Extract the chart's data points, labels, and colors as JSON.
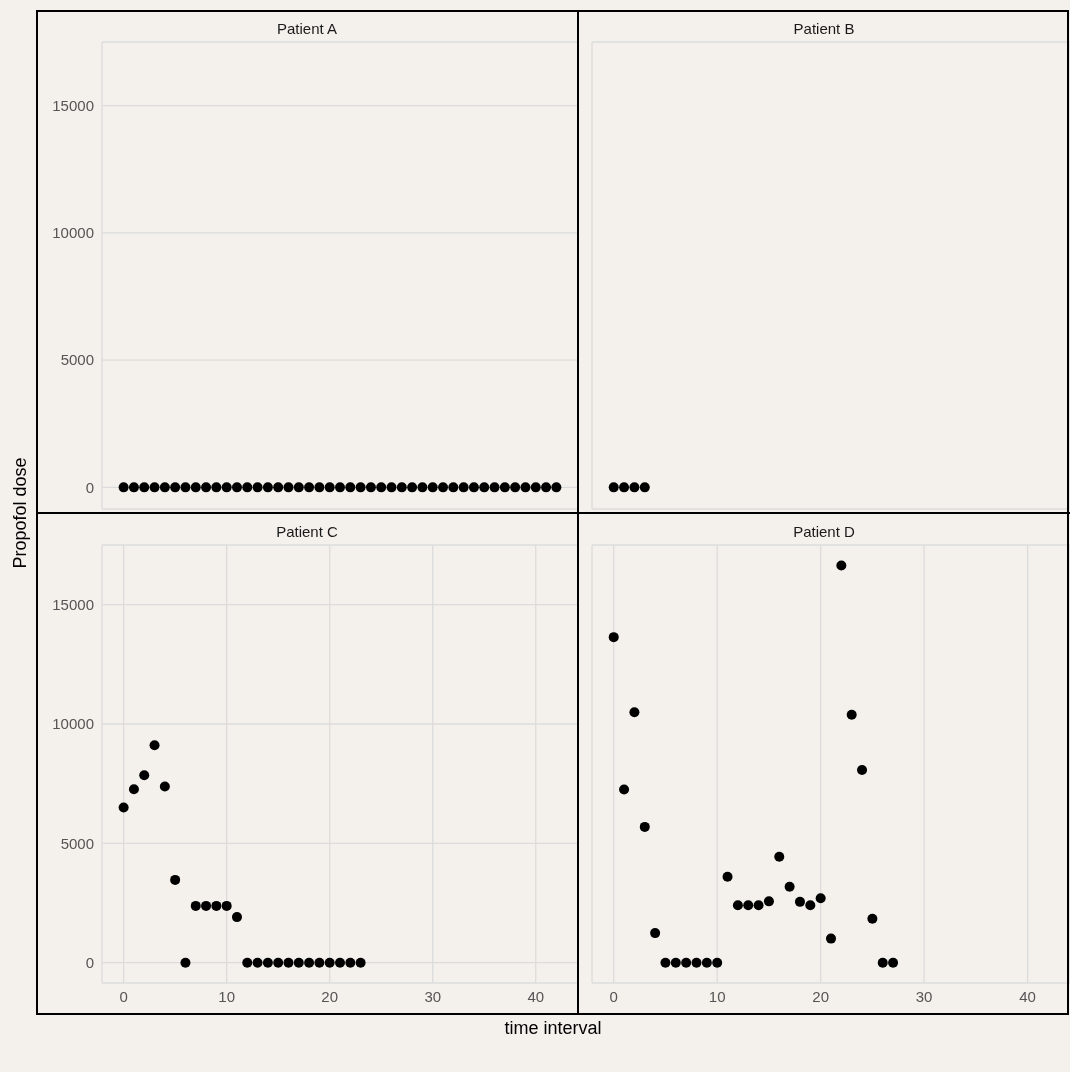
{
  "chart_data": [
    {
      "type": "scatter",
      "title": "Patient A",
      "ylabel": "Propofol dose",
      "xlabel": "time interval",
      "x": [
        0,
        1,
        2,
        3,
        4,
        5,
        6,
        7,
        8,
        9,
        10,
        11,
        12,
        13,
        14,
        15,
        16,
        17,
        18,
        19,
        20,
        21,
        22,
        23,
        24,
        25,
        26,
        27,
        28,
        29,
        30,
        31,
        32,
        33,
        34,
        35,
        36,
        37,
        38,
        39,
        40,
        41,
        42
      ],
      "series": [
        {
          "color": "#000000",
          "values": [
            0,
            0,
            0,
            0,
            0,
            0,
            0,
            0,
            0,
            0,
            0,
            0,
            0,
            0,
            0,
            0,
            0,
            0,
            0,
            0,
            0,
            0,
            0,
            0,
            0,
            0,
            0,
            0,
            0,
            0,
            0,
            0,
            0,
            0,
            0,
            0,
            0,
            0,
            0,
            0,
            0,
            0,
            0
          ]
        }
      ],
      "xlim": [
        -2.1,
        44.1
      ],
      "xticks": [
        0,
        10,
        20,
        30,
        40
      ],
      "ylim": [
        -850,
        17500
      ],
      "yticks": [
        0,
        5000,
        10000,
        15000
      ],
      "grid": true,
      "marker": "circle",
      "tick_labels": "y"
    },
    {
      "type": "scatter",
      "title": "Patient B",
      "x": [
        0,
        1,
        2,
        3
      ],
      "series": [
        {
          "color": "#000000",
          "values": [
            0,
            0,
            0,
            0
          ]
        }
      ],
      "xlim": [
        -2.1,
        44.1
      ],
      "xticks": [
        0,
        10,
        20,
        30,
        40
      ],
      "ylim": [
        -850,
        17500
      ],
      "yticks": [
        0,
        5000,
        10000,
        15000
      ],
      "grid": true,
      "marker": "circle",
      "tick_labels": false
    },
    {
      "type": "scatter",
      "title": "Patient C",
      "x": [
        0,
        1,
        2,
        3,
        4,
        5,
        6,
        7,
        8,
        9,
        10,
        11,
        12,
        13,
        14,
        15,
        16,
        17,
        18,
        19,
        20,
        21,
        22,
        23
      ],
      "series": [
        {
          "color": "#000000",
          "values": [
            6500,
            7270,
            7850,
            9110,
            7380,
            3470,
            0,
            2380,
            2380,
            2380,
            2380,
            1910,
            0,
            0,
            0,
            0,
            0,
            0,
            0,
            0,
            0,
            0,
            0,
            0
          ]
        }
      ],
      "xlim": [
        -2.1,
        44.1
      ],
      "xticks": [
        0,
        10,
        20,
        30,
        40
      ],
      "ylim": [
        -850,
        17500
      ],
      "yticks": [
        0,
        5000,
        10000,
        15000
      ],
      "grid": true,
      "marker": "circle"
    },
    {
      "type": "scatter",
      "title": "Patient D",
      "x": [
        0,
        1,
        2,
        3,
        4,
        5,
        6,
        7,
        8,
        9,
        10,
        11,
        12,
        13,
        14,
        15,
        16,
        17,
        18,
        19,
        20,
        21,
        22,
        23,
        24,
        25,
        26,
        27
      ],
      "series": [
        {
          "color": "#000000",
          "values": [
            13640,
            7260,
            10490,
            5690,
            1240,
            0,
            0,
            0,
            0,
            0,
            0,
            3600,
            2410,
            2410,
            2410,
            2570,
            4440,
            3180,
            2550,
            2410,
            2700,
            1010,
            16640,
            10390,
            8070,
            1840,
            0,
            0
          ]
        }
      ],
      "xlim": [
        -2.1,
        44.1
      ],
      "xticks": [
        0,
        10,
        20,
        30,
        40
      ],
      "ylim": [
        -850,
        17500
      ],
      "yticks": [
        0,
        5000,
        10000,
        15000
      ],
      "grid": true,
      "marker": "circle",
      "tick_labels": "x"
    }
  ]
}
